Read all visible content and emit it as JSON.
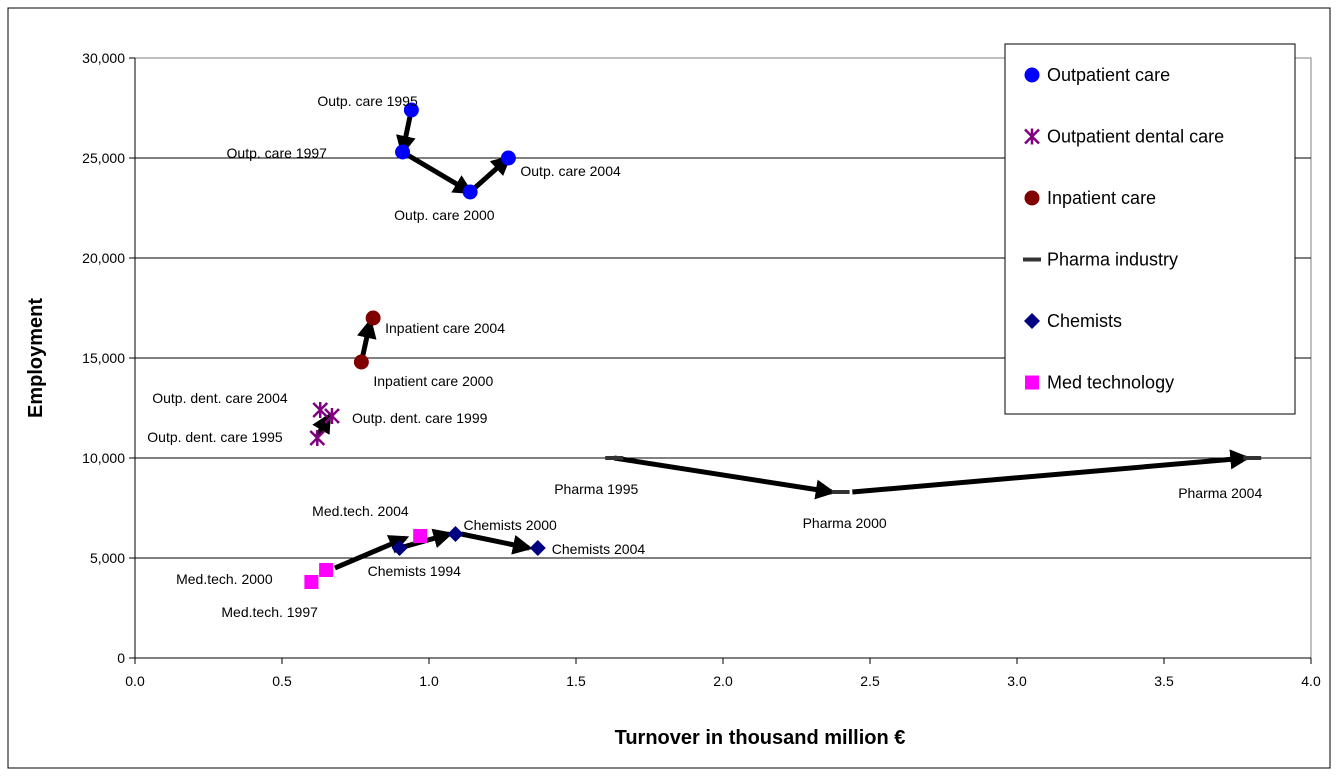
{
  "chart_data": {
    "type": "scatter",
    "title": "",
    "xlabel": "Turnover in thousand million €",
    "ylabel": "Employment",
    "xlim": [
      0,
      4
    ],
    "ylim": [
      0,
      30000
    ],
    "x_ticks": [
      0,
      0.5,
      1,
      1.5,
      2,
      2.5,
      3,
      3.5,
      4
    ],
    "x_tick_labels": [
      "0.0",
      "0.5",
      "1.0",
      "1.5",
      "2.0",
      "2.5",
      "3.0",
      "3.5",
      "4.0"
    ],
    "y_ticks": [
      0,
      5000,
      10000,
      15000,
      20000,
      25000,
      30000
    ],
    "y_tick_labels": [
      "0",
      "5,000",
      "10,000",
      "15,000",
      "20,000",
      "25,000",
      "30,000"
    ],
    "grid": "horizontal",
    "legend_position": "top-right",
    "series": [
      {
        "name": "Outpatient care",
        "marker": "circle",
        "color": "#0000FF",
        "points": [
          {
            "x": 0.94,
            "y": 27400,
            "label": "Outp. care 1995"
          },
          {
            "x": 0.91,
            "y": 25300,
            "label": "Outp. care  1997"
          },
          {
            "x": 1.14,
            "y": 23300,
            "label": "Outp. care  2000"
          },
          {
            "x": 1.27,
            "y": 25000,
            "label": "Outp. care  2004"
          }
        ]
      },
      {
        "name": "Outpatient dental care",
        "marker": "star",
        "color": "#800080",
        "points": [
          {
            "x": 0.62,
            "y": 11000,
            "label": "Outp. dent. care 1995"
          },
          {
            "x": 0.67,
            "y": 12100,
            "label": "Outp. dent. care 1999"
          },
          {
            "x": 0.63,
            "y": 12400,
            "label": "Outp. dent. care 2004"
          }
        ]
      },
      {
        "name": "Inpatient care",
        "marker": "circle",
        "color": "#800000",
        "points": [
          {
            "x": 0.77,
            "y": 14800,
            "label": "Inpatient care 2000"
          },
          {
            "x": 0.81,
            "y": 17000,
            "label": "Inpatient care 2004"
          }
        ]
      },
      {
        "name": "Pharma industry",
        "marker": "dash",
        "color": "#333333",
        "points": [
          {
            "x": 1.63,
            "y": 10000,
            "label": "Pharma 1995"
          },
          {
            "x": 2.4,
            "y": 8300,
            "label": "Pharma 2000"
          },
          {
            "x": 3.8,
            "y": 10000,
            "label": "Pharma 2004"
          }
        ]
      },
      {
        "name": "Chemists",
        "marker": "diamond",
        "color": "#000080",
        "points": [
          {
            "x": 0.9,
            "y": 5500,
            "label": "Chemists 1994"
          },
          {
            "x": 1.09,
            "y": 6200,
            "label": "Chemists 2000"
          },
          {
            "x": 1.37,
            "y": 5500,
            "label": "Chemists 2004"
          }
        ]
      },
      {
        "name": "Med technology",
        "marker": "square",
        "color": "#FF00FF",
        "points": [
          {
            "x": 0.6,
            "y": 3800,
            "label": "Med.tech. 1997"
          },
          {
            "x": 0.65,
            "y": 4400,
            "label": "Med.tech. 2000"
          },
          {
            "x": 0.97,
            "y": 6100,
            "label": "Med.tech. 2004"
          }
        ]
      }
    ],
    "arrows": [
      {
        "from": [
          0.94,
          27400
        ],
        "to": [
          0.91,
          25300
        ]
      },
      {
        "from": [
          0.91,
          25300
        ],
        "to": [
          1.14,
          23300
        ]
      },
      {
        "from": [
          1.14,
          23300
        ],
        "to": [
          1.27,
          25000
        ]
      },
      {
        "from": [
          0.77,
          14800
        ],
        "to": [
          0.8,
          16800
        ]
      },
      {
        "from": [
          0.62,
          11100
        ],
        "to": [
          0.66,
          12100
        ]
      },
      {
        "from": [
          1.63,
          10000
        ],
        "to": [
          2.37,
          8300
        ]
      },
      {
        "from": [
          2.44,
          8300
        ],
        "to": [
          3.78,
          10000
        ]
      },
      {
        "from": [
          0.68,
          4500
        ],
        "to": [
          0.92,
          6000
        ]
      },
      {
        "from": [
          0.9,
          5500
        ],
        "to": [
          1.07,
          6200
        ]
      },
      {
        "from": [
          1.11,
          6200
        ],
        "to": [
          1.34,
          5500
        ]
      }
    ]
  }
}
